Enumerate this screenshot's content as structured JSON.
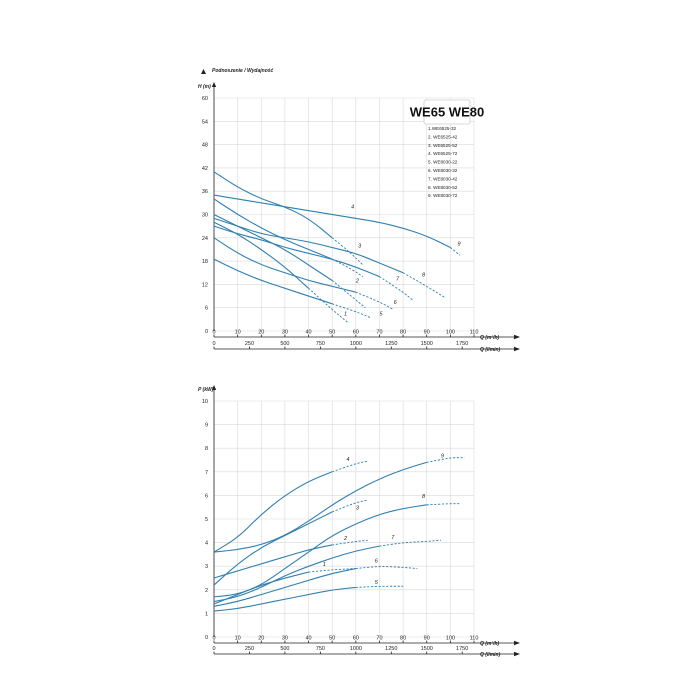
{
  "chart_data": [
    {
      "type": "line",
      "title": "",
      "header_label": "Podnoszenie / Wydajność",
      "ylabel": "H (m)",
      "xlabel": "Q (m³/h)",
      "xlabel2": "Q (l/min)",
      "ylim": [
        0,
        60
      ],
      "yticks": [
        "0",
        "6",
        "12",
        "18",
        "24",
        "30",
        "36",
        "42",
        "48",
        "54",
        "60"
      ],
      "xlim": [
        0,
        110
      ],
      "xticks": [
        "0",
        "10",
        "20",
        "30",
        "40",
        "50",
        "60",
        "70",
        "80",
        "90",
        "100",
        "110"
      ],
      "x2ticks": [
        "0",
        "250",
        "500",
        "750",
        "1000",
        "1250",
        "1500",
        "1750"
      ],
      "legend": {
        "title": "WE65 WE80",
        "items": [
          "1.WE6525-32",
          "2. WE6525-42",
          "3. WE6525-52",
          "4. WE6525-72",
          "5. WE8030-22",
          "6. WE8030-32",
          "7. WE8030-42",
          "8. WE8030-52",
          "9. WE8030-72"
        ]
      },
      "series": [
        {
          "label": "1",
          "x": [
            0,
            10,
            20,
            30,
            40,
            50,
            57
          ],
          "y": [
            28,
            25,
            21,
            16.5,
            11,
            5.5,
            2
          ],
          "dash_from": 4,
          "label_at": [
            55,
            4
          ]
        },
        {
          "label": "2",
          "x": [
            0,
            10,
            20,
            30,
            40,
            50,
            58,
            64
          ],
          "y": [
            30,
            27,
            24,
            21,
            17,
            13,
            9,
            6
          ],
          "dash_from": 5,
          "label_at": [
            60,
            12.5
          ]
        },
        {
          "label": "3",
          "x": [
            0,
            10,
            20,
            30,
            40,
            50,
            58,
            63
          ],
          "y": [
            34,
            30,
            26.5,
            23.5,
            21,
            18.5,
            16,
            14
          ],
          "dash_from": 5,
          "label_at": [
            61,
            21.5
          ]
        },
        {
          "label": "4",
          "x": [
            0,
            10,
            20,
            30,
            40,
            50,
            58,
            63
          ],
          "y": [
            41,
            37,
            34,
            32,
            29,
            24,
            20,
            17
          ],
          "dash_from": 5,
          "label_at": [
            58,
            31.5
          ]
        },
        {
          "label": "5",
          "x": [
            0,
            10,
            20,
            30,
            40,
            50,
            60,
            66
          ],
          "y": [
            18.5,
            15.5,
            13,
            11,
            9,
            7,
            5,
            3.5
          ],
          "dash_from": 5,
          "label_at": [
            70,
            4
          ]
        },
        {
          "label": "6",
          "x": [
            0,
            10,
            20,
            30,
            40,
            50,
            60,
            70,
            76
          ],
          "y": [
            24,
            20,
            17,
            15,
            13,
            11.5,
            10,
            7.5,
            5.5
          ],
          "dash_from": 6,
          "label_at": [
            76,
            7
          ]
        },
        {
          "label": "7",
          "x": [
            0,
            10,
            20,
            30,
            40,
            50,
            60,
            70,
            80,
            84
          ],
          "y": [
            27,
            25,
            23.5,
            21.5,
            20,
            18.5,
            16.5,
            14,
            10,
            8
          ],
          "dash_from": 7,
          "label_at": [
            77,
            13
          ]
        },
        {
          "label": "8",
          "x": [
            0,
            10,
            20,
            30,
            40,
            50,
            60,
            70,
            80,
            90,
            98
          ],
          "y": [
            29,
            27,
            25,
            24,
            23,
            21.5,
            20,
            17.5,
            15,
            11.5,
            8.5
          ],
          "dash_from": 8,
          "label_at": [
            88,
            14
          ]
        },
        {
          "label": "9",
          "x": [
            0,
            10,
            20,
            30,
            40,
            50,
            60,
            70,
            80,
            90,
            100,
            104
          ],
          "y": [
            35,
            34,
            33,
            32,
            31,
            30,
            29,
            28,
            26.5,
            24.5,
            21.5,
            19.5
          ],
          "dash_from": 10,
          "label_at": [
            103,
            22
          ]
        }
      ]
    },
    {
      "type": "line",
      "title": "",
      "ylabel": "P (kW)",
      "xlabel": "Q (m³/h)",
      "xlabel2": "Q (l/min)",
      "ylim": [
        0,
        10
      ],
      "yticks": [
        "0",
        "1",
        "2",
        "3",
        "4",
        "5",
        "6",
        "7",
        "8",
        "9",
        "10"
      ],
      "xlim": [
        0,
        110
      ],
      "xticks": [
        "0",
        "10",
        "20",
        "30",
        "40",
        "50",
        "60",
        "70",
        "80",
        "90",
        "100",
        "110"
      ],
      "x2ticks": [
        "0",
        "250",
        "500",
        "750",
        "1000",
        "1250",
        "1500",
        "1750"
      ],
      "series": [
        {
          "label": "1",
          "x": [
            0,
            10,
            20,
            30,
            40,
            50,
            60
          ],
          "y": [
            1.4,
            1.8,
            2.2,
            2.5,
            2.75,
            2.85,
            2.9
          ],
          "dash_from": 4,
          "label_at": [
            46,
            3
          ]
        },
        {
          "label": "2",
          "x": [
            0,
            10,
            20,
            30,
            40,
            50,
            60,
            65
          ],
          "y": [
            2.5,
            2.8,
            3.1,
            3.4,
            3.7,
            3.9,
            4.05,
            4.1
          ],
          "dash_from": 5,
          "label_at": [
            55,
            4.1
          ]
        },
        {
          "label": "3",
          "x": [
            0,
            10,
            20,
            30,
            40,
            50,
            60,
            65
          ],
          "y": [
            2.2,
            3.1,
            3.8,
            4.3,
            4.8,
            5.3,
            5.7,
            5.8
          ],
          "dash_from": 5,
          "label_at": [
            60,
            5.4
          ]
        },
        {
          "label": "4",
          "x": [
            0,
            10,
            20,
            30,
            40,
            50,
            60,
            65
          ],
          "y": [
            3.6,
            4.2,
            5.2,
            6.0,
            6.6,
            7.0,
            7.35,
            7.45
          ],
          "dash_from": 5,
          "label_at": [
            56,
            7.45
          ]
        },
        {
          "label": "5",
          "x": [
            0,
            10,
            20,
            30,
            40,
            50,
            60,
            70,
            80
          ],
          "y": [
            1.1,
            1.2,
            1.4,
            1.6,
            1.8,
            2.0,
            2.1,
            2.15,
            2.15
          ],
          "dash_from": 6,
          "label_at": [
            68,
            2.25
          ]
        },
        {
          "label": "6",
          "x": [
            0,
            10,
            20,
            30,
            40,
            50,
            60,
            70,
            80,
            86
          ],
          "y": [
            1.3,
            1.5,
            1.8,
            2.1,
            2.4,
            2.7,
            2.9,
            3.0,
            2.95,
            2.9
          ],
          "dash_from": 6,
          "label_at": [
            68,
            3.15
          ]
        },
        {
          "label": "7",
          "x": [
            0,
            10,
            20,
            30,
            40,
            50,
            60,
            70,
            80,
            90,
            96
          ],
          "y": [
            1.5,
            1.7,
            2.1,
            2.6,
            3.0,
            3.35,
            3.65,
            3.85,
            4.0,
            4.05,
            4.1
          ],
          "dash_from": 7,
          "label_at": [
            75,
            4.15
          ]
        },
        {
          "label": "8",
          "x": [
            0,
            10,
            20,
            30,
            40,
            50,
            60,
            70,
            80,
            90,
            100,
            104
          ],
          "y": [
            1.7,
            1.8,
            2.2,
            2.9,
            3.6,
            4.3,
            4.8,
            5.2,
            5.45,
            5.6,
            5.65,
            5.65
          ],
          "dash_from": 9,
          "label_at": [
            88,
            5.9
          ]
        },
        {
          "label": "9",
          "x": [
            0,
            10,
            20,
            30,
            40,
            50,
            60,
            70,
            80,
            90,
            100,
            106
          ],
          "y": [
            3.6,
            3.7,
            3.9,
            4.3,
            4.9,
            5.6,
            6.2,
            6.7,
            7.1,
            7.4,
            7.6,
            7.6
          ],
          "dash_from": 9,
          "label_at": [
            96,
            7.6
          ]
        }
      ]
    }
  ]
}
